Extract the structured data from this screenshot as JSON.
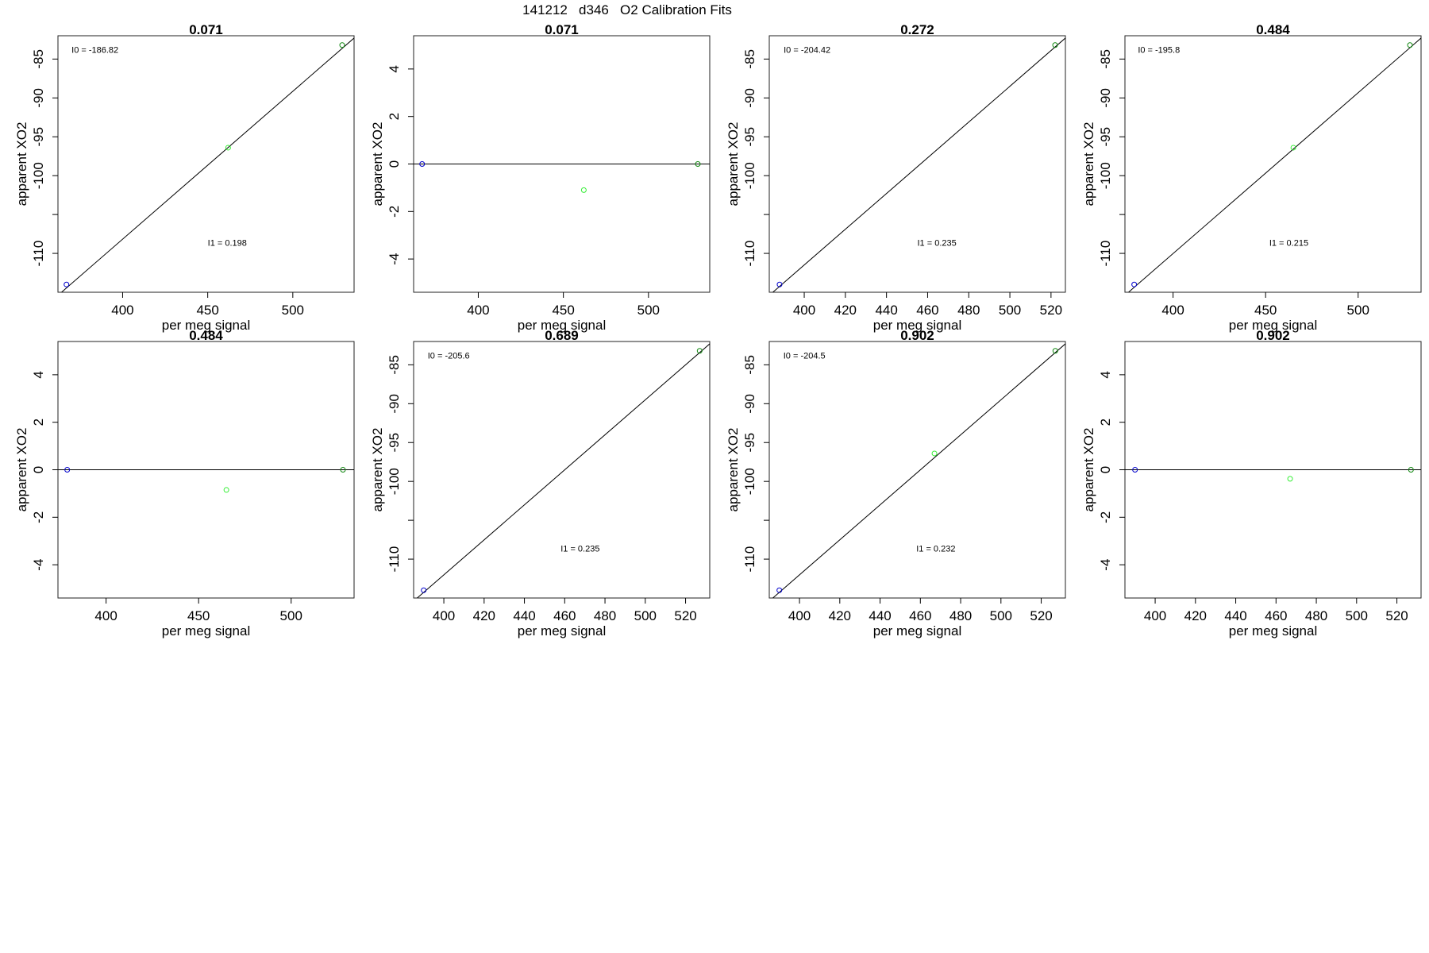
{
  "figure": {
    "title": "141212   d346   O2 Calibration Fits"
  },
  "chart_data": [
    {
      "type": "scatter",
      "title": "0.071",
      "xlabel": "per meg signal",
      "ylabel": "apparent XO2",
      "xlim": [
        362,
        536
      ],
      "ylim": [
        -115,
        -82
      ],
      "xticks": [
        400,
        450,
        500
      ],
      "yticks": [
        -85,
        -90,
        -95,
        -100,
        -110
      ],
      "yminor": [
        -105
      ],
      "points": [
        {
          "x": 367,
          "y": -114.0,
          "color": "#0000cc"
        },
        {
          "x": 462,
          "y": -96.4,
          "color": "#33ee33"
        },
        {
          "x": 529,
          "y": -83.2,
          "color": "#118811"
        }
      ],
      "fit_line": [
        [
          362,
          -115.4
        ],
        [
          536,
          -82.3
        ]
      ],
      "annotations": [
        {
          "text": "I0 =  -186.82",
          "x": 370,
          "y": -84.2
        },
        {
          "text": "I1 =  0.198",
          "x": 450,
          "y": -109.0
        }
      ]
    },
    {
      "type": "scatter",
      "title": "0.071",
      "xlabel": "per meg signal",
      "ylabel": "apparent XO2",
      "xlim": [
        362,
        536
      ],
      "ylim": [
        -5.4,
        5.4
      ],
      "xticks": [
        400,
        450,
        500
      ],
      "yticks": [
        4,
        2,
        0,
        -2,
        -4
      ],
      "points": [
        {
          "x": 367,
          "y": 0,
          "color": "#0000cc"
        },
        {
          "x": 462,
          "y": -1.1,
          "color": "#33ee33"
        },
        {
          "x": 529,
          "y": 0,
          "color": "#118811"
        }
      ],
      "fit_line": [
        [
          362,
          0
        ],
        [
          536,
          0
        ]
      ],
      "annotations": []
    },
    {
      "type": "scatter",
      "title": "0.272",
      "xlabel": "per meg signal",
      "ylabel": "apparent XO2",
      "xlim": [
        383,
        527
      ],
      "ylim": [
        -115,
        -82
      ],
      "xticks": [
        400,
        420,
        440,
        460,
        480,
        500,
        520
      ],
      "yticks": [
        -85,
        -90,
        -95,
        -100,
        -110
      ],
      "yminor": [
        -105
      ],
      "points": [
        {
          "x": 388,
          "y": -114.0,
          "color": "#0000cc"
        },
        {
          "x": 522,
          "y": -83.2,
          "color": "#118811"
        }
      ],
      "fit_line": [
        [
          383,
          -115.4
        ],
        [
          527,
          -82.3
        ]
      ],
      "annotations": [
        {
          "text": "I0 =  -204.42",
          "x": 390,
          "y": -84.2
        },
        {
          "text": "I1 =  0.235",
          "x": 455,
          "y": -109.0
        }
      ]
    },
    {
      "type": "scatter",
      "title": "0.484",
      "xlabel": "per meg signal",
      "ylabel": "apparent XO2",
      "xlim": [
        374,
        534
      ],
      "ylim": [
        -115,
        -82
      ],
      "xticks": [
        400,
        450,
        500
      ],
      "yticks": [
        -85,
        -90,
        -95,
        -100,
        -110
      ],
      "yminor": [
        -105
      ],
      "points": [
        {
          "x": 379,
          "y": -114.0,
          "color": "#0000cc"
        },
        {
          "x": 465,
          "y": -96.4,
          "color": "#33ee33"
        },
        {
          "x": 528,
          "y": -83.2,
          "color": "#118811"
        }
      ],
      "fit_line": [
        [
          374,
          -115.4
        ],
        [
          534,
          -82.3
        ]
      ],
      "annotations": [
        {
          "text": "I0 =  -195.8",
          "x": 381,
          "y": -84.2
        },
        {
          "text": "I1 =  0.215",
          "x": 452,
          "y": -109.0
        }
      ]
    },
    {
      "type": "scatter",
      "title": "0.484",
      "xlabel": "per meg signal",
      "ylabel": "apparent XO2",
      "xlim": [
        374,
        534
      ],
      "ylim": [
        -5.4,
        5.4
      ],
      "xticks": [
        400,
        450,
        500
      ],
      "yticks": [
        4,
        2,
        0,
        -2,
        -4
      ],
      "points": [
        {
          "x": 379,
          "y": 0,
          "color": "#0000cc"
        },
        {
          "x": 465,
          "y": -0.85,
          "color": "#33ee33"
        },
        {
          "x": 528,
          "y": 0,
          "color": "#118811"
        }
      ],
      "fit_line": [
        [
          374,
          0
        ],
        [
          534,
          0
        ]
      ],
      "annotations": []
    },
    {
      "type": "scatter",
      "title": "0.689",
      "xlabel": "per meg signal",
      "ylabel": "apparent XO2",
      "xlim": [
        385,
        532
      ],
      "ylim": [
        -115,
        -82
      ],
      "xticks": [
        400,
        420,
        440,
        460,
        480,
        500,
        520
      ],
      "yticks": [
        -85,
        -90,
        -95,
        -100,
        -110
      ],
      "yminor": [
        -105
      ],
      "points": [
        {
          "x": 390,
          "y": -114.0,
          "color": "#0000cc"
        },
        {
          "x": 527,
          "y": -83.2,
          "color": "#118811"
        }
      ],
      "fit_line": [
        [
          385,
          -115.4
        ],
        [
          532,
          -82.3
        ]
      ],
      "annotations": [
        {
          "text": "I0 =  -205.6",
          "x": 392,
          "y": -84.2
        },
        {
          "text": "I1 =  0.235",
          "x": 458,
          "y": -109.0
        }
      ]
    },
    {
      "type": "scatter",
      "title": "0.902",
      "xlabel": "per meg signal",
      "ylabel": "apparent XO2",
      "xlim": [
        385,
        532
      ],
      "ylim": [
        -115,
        -82
      ],
      "xticks": [
        400,
        420,
        440,
        460,
        480,
        500,
        520
      ],
      "yticks": [
        -85,
        -90,
        -95,
        -100,
        -110
      ],
      "yminor": [
        -105
      ],
      "points": [
        {
          "x": 390,
          "y": -114.0,
          "color": "#0000cc"
        },
        {
          "x": 467,
          "y": -96.4,
          "color": "#33ee33"
        },
        {
          "x": 527,
          "y": -83.2,
          "color": "#118811"
        }
      ],
      "fit_line": [
        [
          385,
          -115.4
        ],
        [
          532,
          -82.3
        ]
      ],
      "annotations": [
        {
          "text": "I0 =  -204.5",
          "x": 392,
          "y": -84.2
        },
        {
          "text": "I1 =  0.232",
          "x": 458,
          "y": -109.0
        }
      ]
    },
    {
      "type": "scatter",
      "title": "0.902",
      "xlabel": "per meg signal",
      "ylabel": "apparent XO2",
      "xlim": [
        385,
        532
      ],
      "ylim": [
        -5.4,
        5.4
      ],
      "xticks": [
        400,
        420,
        440,
        460,
        480,
        500,
        520
      ],
      "yticks": [
        4,
        2,
        0,
        -2,
        -4
      ],
      "points": [
        {
          "x": 390,
          "y": 0,
          "color": "#0000cc"
        },
        {
          "x": 467,
          "y": -0.38,
          "color": "#33ee33"
        },
        {
          "x": 527,
          "y": 0,
          "color": "#118811"
        }
      ],
      "fit_line": [
        [
          385,
          0
        ],
        [
          532,
          0
        ]
      ],
      "annotations": []
    }
  ]
}
